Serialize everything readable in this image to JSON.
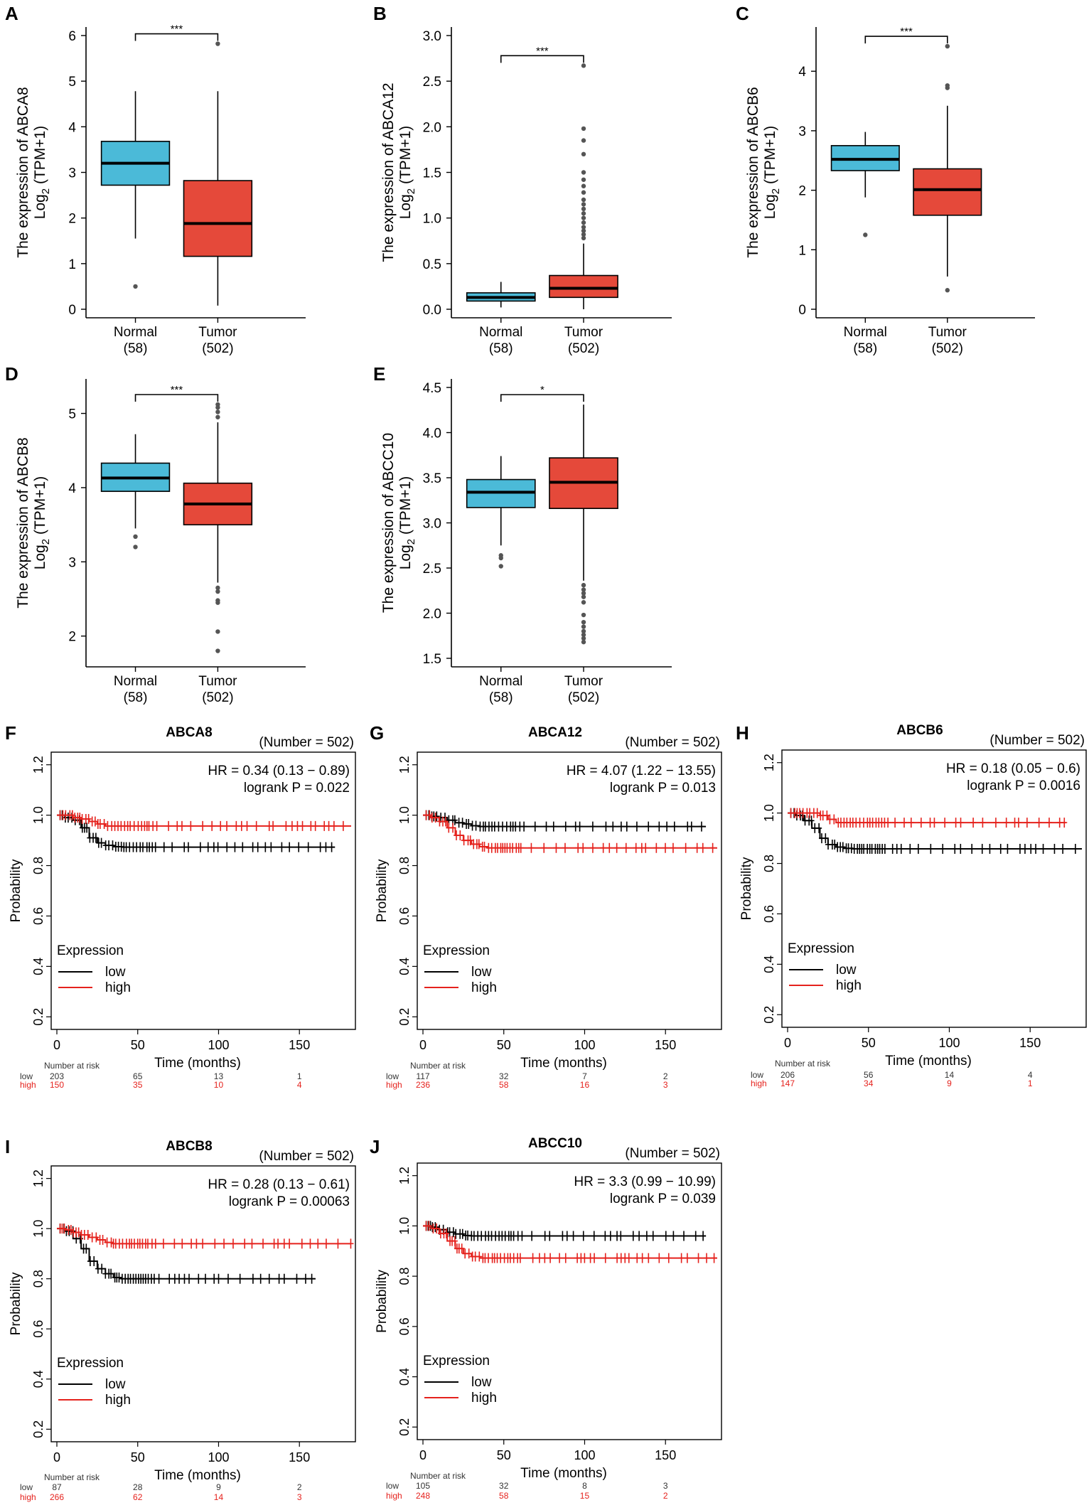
{
  "colors": {
    "normal_box": "#4bbad8",
    "tumor_box": "#e5493a",
    "km_low": "#000000",
    "km_high": "#e5221d",
    "risk_high_text": "#e5221d"
  },
  "chart_data": [
    {
      "panel": "A",
      "type": "box",
      "ylabel_line1": "The expression of ABCA8",
      "ylabel_line2_main": "Log",
      "ylabel_line2_sub": "2",
      "ylabel_line2_rest": " (TPM+1)",
      "ylim": [
        0,
        6
      ],
      "yticks": [
        0,
        1,
        2,
        3,
        4,
        5,
        6
      ],
      "significance": "***",
      "groups": [
        {
          "name": "Normal",
          "count": "(58)",
          "q1": 2.72,
          "median": 3.2,
          "q3": 3.68,
          "whisker_low": 1.55,
          "whisker_high": 4.78,
          "outliers": [
            0.5
          ]
        },
        {
          "name": "Tumor",
          "count": "(502)",
          "q1": 1.16,
          "median": 1.88,
          "q3": 2.82,
          "whisker_low": 0.08,
          "whisker_high": 4.78,
          "outliers": [
            5.82
          ]
        }
      ]
    },
    {
      "panel": "B",
      "type": "box",
      "ylabel_line1": "The expression of ABCA12",
      "ylabel_line2_main": "Log",
      "ylabel_line2_sub": "2",
      "ylabel_line2_rest": " (TPM+1)",
      "ylim": [
        0,
        3
      ],
      "yticks": [
        0.0,
        0.5,
        1.0,
        1.5,
        2.0,
        2.5,
        3.0
      ],
      "ytick_labels": [
        "0.0",
        "0.5",
        "1.0",
        "1.5",
        "2.0",
        "2.5",
        "3.0"
      ],
      "significance": "***",
      "groups": [
        {
          "name": "Normal",
          "count": "(58)",
          "q1": 0.09,
          "median": 0.13,
          "q3": 0.18,
          "whisker_low": 0.02,
          "whisker_high": 0.3,
          "outliers": []
        },
        {
          "name": "Tumor",
          "count": "(502)",
          "q1": 0.13,
          "median": 0.23,
          "q3": 0.37,
          "whisker_low": 0.0,
          "whisker_high": 0.72,
          "outliers": [
            0.78,
            0.82,
            0.86,
            0.9,
            0.95,
            1.0,
            1.05,
            1.1,
            1.15,
            1.2,
            1.28,
            1.35,
            1.42,
            1.5,
            1.7,
            1.85,
            1.98,
            2.67
          ]
        }
      ]
    },
    {
      "panel": "C",
      "type": "box",
      "ylabel_line1": "The expression of ABCB6",
      "ylabel_line2_main": "Log",
      "ylabel_line2_sub": "2",
      "ylabel_line2_rest": " (TPM+1)",
      "ylim": [
        0,
        4.6
      ],
      "yticks": [
        0,
        1,
        2,
        3,
        4
      ],
      "significance": "***",
      "groups": [
        {
          "name": "Normal",
          "count": "(58)",
          "q1": 2.33,
          "median": 2.52,
          "q3": 2.75,
          "whisker_low": 1.88,
          "whisker_high": 2.98,
          "outliers": [
            1.25
          ]
        },
        {
          "name": "Tumor",
          "count": "(502)",
          "q1": 1.58,
          "median": 2.01,
          "q3": 2.36,
          "whisker_low": 0.55,
          "whisker_high": 3.42,
          "outliers": [
            0.32,
            3.72,
            3.76,
            4.42
          ]
        }
      ]
    },
    {
      "panel": "D",
      "type": "box",
      "ylabel_line1": "The expression of ABCB8",
      "ylabel_line2_main": "Log",
      "ylabel_line2_sub": "2",
      "ylabel_line2_rest": " (TPM+1)",
      "ylim": [
        1.7,
        5.35
      ],
      "yticks": [
        2,
        3,
        4,
        5
      ],
      "significance": "***",
      "groups": [
        {
          "name": "Normal",
          "count": "(58)",
          "q1": 3.95,
          "median": 4.13,
          "q3": 4.33,
          "whisker_low": 3.45,
          "whisker_high": 4.72,
          "outliers": [
            3.34,
            3.2
          ]
        },
        {
          "name": "Tumor",
          "count": "(502)",
          "q1": 3.5,
          "median": 3.78,
          "q3": 4.06,
          "whisker_low": 2.72,
          "whisker_high": 4.88,
          "outliers": [
            4.95,
            5.02,
            5.08,
            5.12,
            2.65,
            2.6,
            2.48,
            2.45,
            2.06,
            1.8
          ]
        }
      ]
    },
    {
      "panel": "E",
      "type": "box",
      "ylabel_line1": "The expression of ABCC10",
      "ylabel_line2_main": "Log",
      "ylabel_line2_sub": "2",
      "ylabel_line2_rest": " (TPM+1)",
      "ylim": [
        1.5,
        4.5
      ],
      "yticks": [
        1.5,
        2.0,
        2.5,
        3.0,
        3.5,
        4.0,
        4.5
      ],
      "ytick_labels": [
        "1.5",
        "2.0",
        "2.5",
        "3.0",
        "3.5",
        "4.0",
        "4.5"
      ],
      "significance": "*",
      "groups": [
        {
          "name": "Normal",
          "count": "(58)",
          "q1": 3.17,
          "median": 3.34,
          "q3": 3.48,
          "whisker_low": 2.75,
          "whisker_high": 3.74,
          "outliers": [
            2.64,
            2.61,
            2.52
          ]
        },
        {
          "name": "Tumor",
          "count": "(502)",
          "q1": 3.16,
          "median": 3.45,
          "q3": 3.72,
          "whisker_low": 2.36,
          "whisker_high": 4.31,
          "outliers": [
            2.31,
            2.26,
            2.22,
            2.18,
            2.12,
            1.98,
            1.9,
            1.85,
            1.8,
            1.76,
            1.72,
            1.68
          ]
        }
      ]
    },
    {
      "panel": "F",
      "type": "line",
      "kind": "kaplan-meier",
      "title": "ABCA8",
      "number": "(Number = 502)",
      "hr": "HR = 0.34 (0.13 − 0.89)",
      "logrank": "logrank P = 0.022",
      "xlabel": "Time (months)",
      "ylabel": "Probability",
      "xlim": [
        0,
        182
      ],
      "ylim": [
        0.15,
        1.25
      ],
      "xticks": [
        0,
        50,
        100,
        150
      ],
      "yticks": [
        0.2,
        0.4,
        0.6,
        0.8,
        1.0,
        1.2
      ],
      "ytick_labels": [
        "0.2",
        "0.4",
        "0.6",
        "0.8",
        "1.0",
        "1.2"
      ],
      "legend_title": "Expression",
      "legend_low": "low",
      "legend_high": "high",
      "series": [
        {
          "name": "low",
          "x": [
            0,
            5,
            10,
            15,
            20,
            25,
            30,
            35,
            40,
            172
          ],
          "y": [
            1.0,
            0.99,
            0.98,
            0.95,
            0.91,
            0.89,
            0.88,
            0.875,
            0.873,
            0.873
          ],
          "censor_from": 2,
          "censor_to": 172
        },
        {
          "name": "high",
          "x": [
            0,
            5,
            10,
            15,
            20,
            25,
            30,
            182
          ],
          "y": [
            1.0,
            1.0,
            0.99,
            0.985,
            0.975,
            0.965,
            0.957,
            0.957
          ],
          "censor_from": 2,
          "censor_to": 182
        }
      ],
      "risk": {
        "header": "Number at risk",
        "low_label": "low",
        "high_label": "high",
        "low": [
          "203",
          "65",
          "13",
          "1"
        ],
        "high": [
          "150",
          "35",
          "10",
          "4"
        ]
      }
    },
    {
      "panel": "G",
      "type": "line",
      "kind": "kaplan-meier",
      "title": "ABCA12",
      "number": "(Number = 502)",
      "hr": "HR = 4.07 (1.22 − 13.55)",
      "logrank": "logrank P = 0.013",
      "xlabel": "Time (months)",
      "ylabel": "Probability",
      "xlim": [
        0,
        182
      ],
      "ylim": [
        0.15,
        1.25
      ],
      "xticks": [
        0,
        50,
        100,
        150
      ],
      "yticks": [
        0.2,
        0.4,
        0.6,
        0.8,
        1.0,
        1.2
      ],
      "ytick_labels": [
        "0.2",
        "0.4",
        "0.6",
        "0.8",
        "1.0",
        "1.2"
      ],
      "legend_title": "Expression",
      "legend_low": "low",
      "legend_high": "high",
      "series": [
        {
          "name": "low",
          "x": [
            0,
            5,
            10,
            15,
            20,
            25,
            30,
            35,
            175
          ],
          "y": [
            1.0,
            0.995,
            0.99,
            0.98,
            0.97,
            0.965,
            0.958,
            0.955,
            0.955
          ],
          "censor_from": 2,
          "censor_to": 175
        },
        {
          "name": "high",
          "x": [
            0,
            5,
            10,
            15,
            20,
            25,
            30,
            35,
            40,
            182
          ],
          "y": [
            1.0,
            0.99,
            0.975,
            0.95,
            0.92,
            0.9,
            0.885,
            0.875,
            0.87,
            0.87
          ],
          "censor_from": 2,
          "censor_to": 182
        }
      ],
      "risk": {
        "header": "Number at risk",
        "low_label": "low",
        "high_label": "high",
        "low": [
          "117",
          "32",
          "7",
          "2"
        ],
        "high": [
          "236",
          "58",
          "16",
          "3"
        ]
      }
    },
    {
      "panel": "H",
      "type": "line",
      "kind": "kaplan-meier",
      "title": "ABCB6",
      "number": "(Number = 502)",
      "hr": "HR = 0.18 (0.05 − 0.6)",
      "logrank": "logrank P = 0.0016",
      "xlabel": "Time (months)",
      "ylabel": "Probability",
      "xlim": [
        0,
        182
      ],
      "ylim": [
        0.15,
        1.25
      ],
      "xticks": [
        0,
        50,
        100,
        150
      ],
      "yticks": [
        0.2,
        0.4,
        0.6,
        0.8,
        1.0,
        1.2
      ],
      "ytick_labels": [
        "0.2",
        "0.4",
        "0.6",
        "0.8",
        "1.0",
        "1.2"
      ],
      "legend_title": "Expression",
      "legend_low": "low",
      "legend_high": "high",
      "series": [
        {
          "name": "low",
          "x": [
            0,
            5,
            10,
            15,
            20,
            25,
            30,
            35,
            40,
            182
          ],
          "y": [
            1.0,
            0.99,
            0.97,
            0.94,
            0.9,
            0.875,
            0.865,
            0.86,
            0.858,
            0.858
          ],
          "censor_from": 2,
          "censor_to": 182
        },
        {
          "name": "high",
          "x": [
            0,
            5,
            10,
            15,
            20,
            25,
            30,
            172
          ],
          "y": [
            1.0,
            1.0,
            1.0,
            1.0,
            0.99,
            0.975,
            0.962,
            0.962
          ],
          "censor_from": 2,
          "censor_to": 172
        }
      ],
      "risk": {
        "header": "Number at risk",
        "low_label": "low",
        "high_label": "high",
        "low": [
          "206",
          "56",
          "14",
          "4"
        ],
        "high": [
          "147",
          "34",
          "9",
          "1"
        ]
      }
    },
    {
      "panel": "I",
      "type": "line",
      "kind": "kaplan-meier",
      "title": "ABCB8",
      "number": "(Number = 502)",
      "hr": "HR = 0.28 (0.13 − 0.61)",
      "logrank": "logrank P = 0.00063",
      "xlabel": "Time (months)",
      "ylabel": "Probability",
      "xlim": [
        0,
        182
      ],
      "ylim": [
        0.15,
        1.25
      ],
      "xticks": [
        0,
        50,
        100,
        150
      ],
      "yticks": [
        0.2,
        0.4,
        0.6,
        0.8,
        1.0,
        1.2
      ],
      "ytick_labels": [
        "0.2",
        "0.4",
        "0.6",
        "0.8",
        "1.0",
        "1.2"
      ],
      "legend_title": "Expression",
      "legend_low": "low",
      "legend_high": "high",
      "series": [
        {
          "name": "low",
          "x": [
            0,
            5,
            10,
            15,
            20,
            25,
            30,
            35,
            40,
            160
          ],
          "y": [
            1.0,
            0.99,
            0.96,
            0.92,
            0.87,
            0.84,
            0.82,
            0.805,
            0.8,
            0.8
          ],
          "censor_from": 2,
          "censor_to": 160
        },
        {
          "name": "high",
          "x": [
            0,
            5,
            10,
            15,
            20,
            25,
            30,
            35,
            182
          ],
          "y": [
            1.0,
            0.995,
            0.985,
            0.975,
            0.965,
            0.955,
            0.945,
            0.94,
            0.94
          ],
          "censor_from": 2,
          "censor_to": 182
        }
      ],
      "risk": {
        "header": "Number at risk",
        "low_label": "low",
        "high_label": "high",
        "low": [
          "87",
          "28",
          "9",
          "2"
        ],
        "high": [
          "266",
          "62",
          "14",
          "3"
        ]
      }
    },
    {
      "panel": "J",
      "type": "line",
      "kind": "kaplan-meier",
      "title": "ABCC10",
      "number": "(Number = 502)",
      "hr": "HR = 3.3 (0.99 − 10.99)",
      "logrank": "logrank P = 0.039",
      "xlabel": "Time (months)",
      "ylabel": "Probability",
      "xlim": [
        0,
        182
      ],
      "ylim": [
        0.15,
        1.25
      ],
      "xticks": [
        0,
        50,
        100,
        150
      ],
      "yticks": [
        0.2,
        0.4,
        0.6,
        0.8,
        1.0,
        1.2
      ],
      "ytick_labels": [
        "0.2",
        "0.4",
        "0.6",
        "0.8",
        "1.0",
        "1.2"
      ],
      "legend_title": "Expression",
      "legend_low": "low",
      "legend_high": "high",
      "series": [
        {
          "name": "low",
          "x": [
            0,
            5,
            10,
            15,
            20,
            25,
            30,
            175
          ],
          "y": [
            1.0,
            0.995,
            0.985,
            0.975,
            0.968,
            0.962,
            0.96,
            0.96
          ],
          "censor_from": 2,
          "censor_to": 175
        },
        {
          "name": "high",
          "x": [
            0,
            5,
            10,
            15,
            20,
            25,
            30,
            35,
            182
          ],
          "y": [
            1.0,
            0.99,
            0.97,
            0.94,
            0.91,
            0.89,
            0.878,
            0.872,
            0.872
          ],
          "censor_from": 2,
          "censor_to": 182
        }
      ],
      "risk": {
        "header": "Number at risk",
        "low_label": "low",
        "high_label": "high",
        "low": [
          "105",
          "32",
          "8",
          "3"
        ],
        "high": [
          "248",
          "58",
          "15",
          "2"
        ]
      }
    }
  ]
}
